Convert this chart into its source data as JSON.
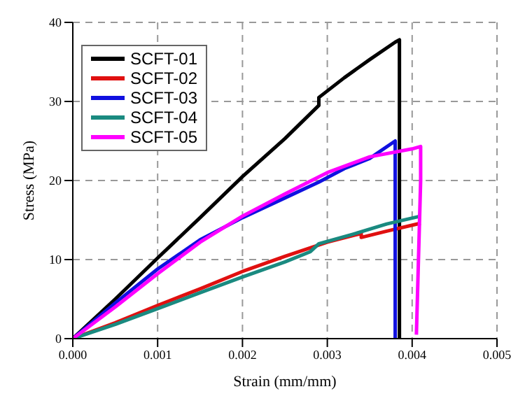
{
  "chart_data": {
    "type": "line",
    "xlabel": "Strain (mm/mm)",
    "ylabel": "Stress (MPa)",
    "xlim": [
      0,
      0.005
    ],
    "ylim": [
      0,
      40
    ],
    "xticks": [
      {
        "value": 0,
        "label": "0.000"
      },
      {
        "value": 0.001,
        "label": "0.001"
      },
      {
        "value": 0.002,
        "label": "0.002"
      },
      {
        "value": 0.003,
        "label": "0.003"
      },
      {
        "value": 0.004,
        "label": "0.004"
      },
      {
        "value": 0.005,
        "label": "0.005"
      }
    ],
    "yticks": [
      0,
      10,
      20,
      30,
      40
    ],
    "grid": true,
    "legend": "top left",
    "line_style": "solid",
    "series": [
      {
        "name": "SCFT-01",
        "color": "#000000",
        "x": [
          0,
          0.0005,
          0.001,
          0.0015,
          0.002,
          0.0025,
          0.0029,
          0.0029,
          0.0032,
          0.0035,
          0.0038,
          0.00385,
          0.00385
        ],
        "values": [
          0,
          5,
          10.2,
          15.3,
          20.5,
          25.3,
          29.5,
          30.5,
          33,
          35.3,
          37.5,
          37.8,
          0
        ]
      },
      {
        "name": "SCFT-02",
        "color": "#e01010",
        "x": [
          0,
          0.0005,
          0.001,
          0.0015,
          0.002,
          0.0025,
          0.003,
          0.0034,
          0.0034,
          0.0037,
          0.0041
        ],
        "values": [
          0,
          2,
          4.2,
          6.3,
          8.5,
          10.4,
          12.2,
          13.3,
          12.8,
          13.6,
          14.6
        ]
      },
      {
        "name": "SCFT-03",
        "color": "#1010e0",
        "x": [
          0,
          0.0005,
          0.001,
          0.0015,
          0.002,
          0.0025,
          0.0029,
          0.0032,
          0.0035,
          0.0038,
          0.0038
        ],
        "values": [
          0,
          4.5,
          8.8,
          12.5,
          15.3,
          17.8,
          19.8,
          21.5,
          22.8,
          25,
          0
        ]
      },
      {
        "name": "SCFT-04",
        "color": "#1a8a80",
        "x": [
          0,
          0.0005,
          0.001,
          0.0015,
          0.002,
          0.0025,
          0.0028,
          0.0029,
          0.0033,
          0.0037,
          0.0041
        ],
        "values": [
          0,
          1.8,
          3.8,
          5.8,
          7.8,
          9.7,
          11,
          12,
          13.2,
          14.5,
          15.5
        ]
      },
      {
        "name": "SCFT-05",
        "color": "#ff00ff",
        "x": [
          0,
          0.0005,
          0.001,
          0.0015,
          0.002,
          0.0025,
          0.003,
          0.0035,
          0.004,
          0.0041,
          0.0041,
          0.00405
        ],
        "values": [
          0,
          4,
          8.2,
          12.2,
          15.5,
          18.3,
          21,
          23,
          24,
          24.3,
          20,
          0.5
        ]
      }
    ]
  }
}
